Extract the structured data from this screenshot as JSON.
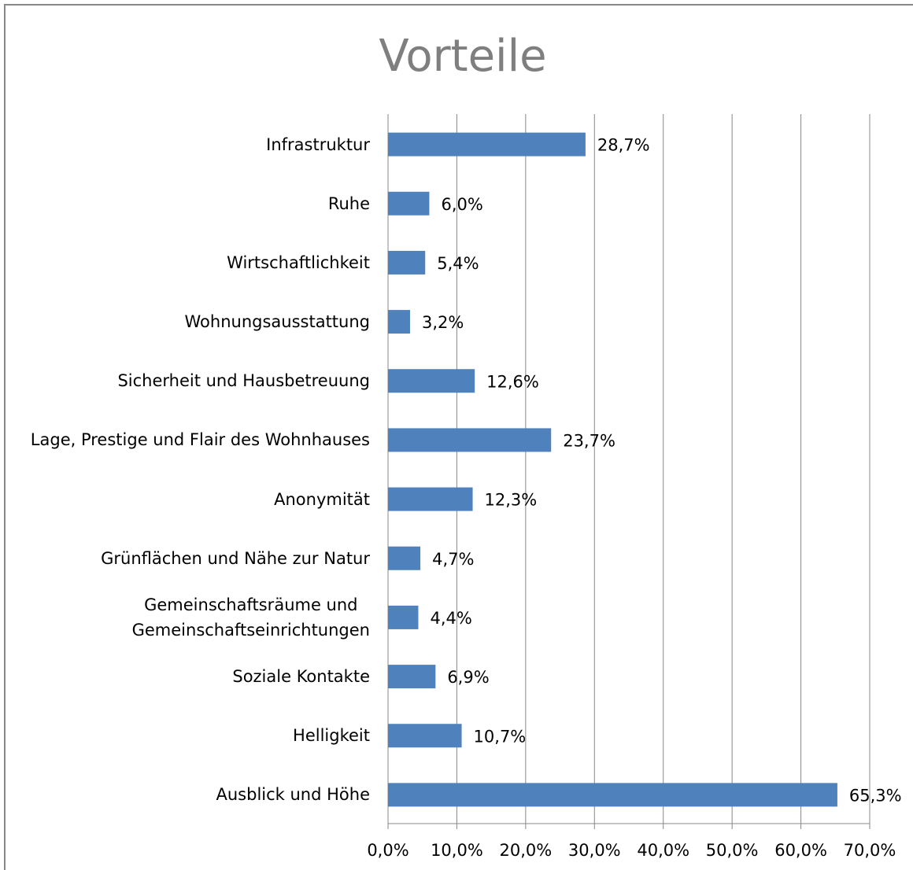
{
  "chart_data": {
    "type": "bar",
    "orientation": "horizontal",
    "title": "Vorteile",
    "categories": [
      "Infrastruktur",
      "Ruhe",
      "Wirtschaftlichkeit",
      "Wohnungsausstattung",
      "Sicherheit und Hausbetreuung",
      "Lage, Prestige und Flair des Wohnhauses",
      "Anonymität",
      "Grünflächen und Nähe zur Natur",
      "Gemeinschaftsräume und\nGemeinschaftseinrichtungen",
      "Soziale Kontakte",
      "Helligkeit",
      "Ausblick und Höhe"
    ],
    "values": [
      28.7,
      6.0,
      5.4,
      3.2,
      12.6,
      23.7,
      12.3,
      4.7,
      4.4,
      6.9,
      10.7,
      65.3
    ],
    "value_labels": [
      "28,7%",
      "6,0%",
      "5,4%",
      "3,2%",
      "12,6%",
      "23,7%",
      "12,3%",
      "4,7%",
      "4,4%",
      "6,9%",
      "10,7%",
      "65,3%"
    ],
    "color": "#4f81bd",
    "xlim": [
      0,
      70
    ],
    "xticks": [
      {
        "value": 0,
        "label": "0,0%"
      },
      {
        "value": 10,
        "label": "10,0%"
      },
      {
        "value": 20,
        "label": "20,0%"
      },
      {
        "value": 30,
        "label": "30,0%"
      },
      {
        "value": 40,
        "label": "40,0%"
      },
      {
        "value": 50,
        "label": "50,0%"
      },
      {
        "value": 60,
        "label": "60,0%"
      },
      {
        "value": 70,
        "label": "70,0%"
      }
    ],
    "grid": true
  }
}
